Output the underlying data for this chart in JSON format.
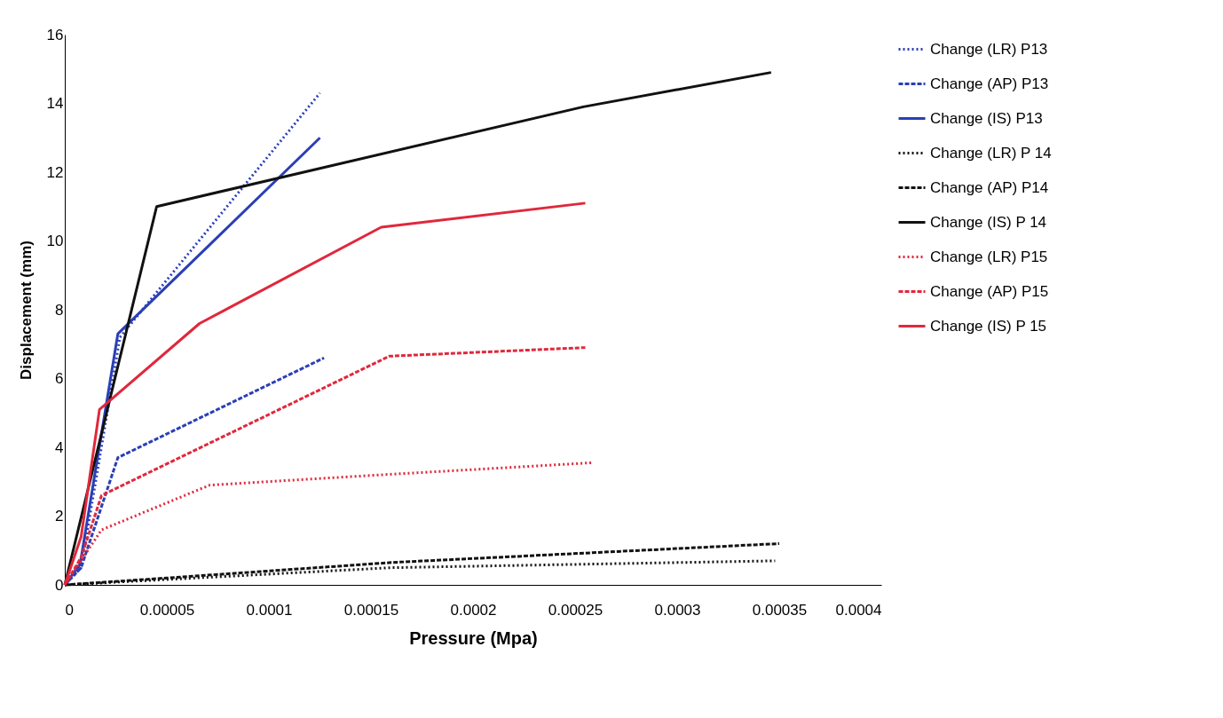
{
  "chart_data": {
    "type": "line",
    "xlabel": "Pressure (Mpa)",
    "ylabel": "Displacement (mm)",
    "xlim": [
      0,
      0.0004
    ],
    "xticks": [
      0,
      {
        "value": 5e-05,
        "label": "0.00005"
      },
      0.0001,
      0.00015,
      0.0002,
      0.00025,
      0.0003,
      0.00035,
      0.0004
    ],
    "ylim": [
      0,
      16
    ],
    "yticks": [
      0,
      2,
      4,
      6,
      8,
      10,
      12,
      14,
      16
    ],
    "grid": false,
    "legend": "right",
    "marker": "none",
    "series": [
      {
        "name": "Change (LR) P13",
        "color": "#2a3fb5",
        "line_style": "dotted",
        "x": [
          0,
          8e-06,
          2.7e-05,
          0.000125
        ],
        "values": [
          0,
          0.5,
          7.2,
          14.3
        ]
      },
      {
        "name": "Change (AP) P13",
        "color": "#2a3fb5",
        "line_style": "dashed",
        "x": [
          0,
          8e-06,
          2.6e-05,
          0.000127
        ],
        "values": [
          0,
          0.5,
          3.7,
          6.6
        ]
      },
      {
        "name": "Change (IS) P13",
        "color": "#2a3fb5",
        "line_style": "solid",
        "x": [
          0,
          7.5e-06,
          2.6e-05,
          0.000125
        ],
        "values": [
          0,
          0.6,
          7.3,
          13.0
        ]
      },
      {
        "name": "Change (LR) P 14",
        "color": "#111111",
        "line_style": "dotted",
        "x": [
          0,
          0.00016,
          0.000348
        ],
        "values": [
          0,
          0.5,
          0.7
        ]
      },
      {
        "name": "Change (AP) P14",
        "color": "#111111",
        "line_style": "dashed",
        "x": [
          0,
          5e-05,
          0.00016,
          0.00035
        ],
        "values": [
          0,
          0.2,
          0.65,
          1.2
        ]
      },
      {
        "name": "Change (IS) P 14",
        "color": "#111111",
        "line_style": "solid",
        "x": [
          0,
          4.5e-05,
          0.000254,
          0.000346
        ],
        "values": [
          0,
          11.0,
          13.9,
          14.9
        ]
      },
      {
        "name": "Change (LR) P15",
        "color": "#e0283c",
        "line_style": "dotted",
        "x": [
          0,
          1.8e-05,
          7.1e-05,
          0.000155,
          0.000258
        ],
        "values": [
          0,
          1.6,
          2.9,
          3.2,
          3.55
        ]
      },
      {
        "name": "Change (AP) P15",
        "color": "#e0283c",
        "line_style": "dashed",
        "x": [
          0,
          8e-06,
          1.8e-05,
          0.000159,
          0.000255
        ],
        "values": [
          0,
          0.8,
          2.6,
          6.65,
          6.9
        ]
      },
      {
        "name": "Change (IS) P 15",
        "color": "#e0283c",
        "line_style": "solid",
        "x": [
          0,
          8e-06,
          1.7e-05,
          6.6e-05,
          0.000155,
          0.000255
        ],
        "values": [
          0,
          1.4,
          5.1,
          7.6,
          10.4,
          11.1
        ]
      }
    ]
  }
}
